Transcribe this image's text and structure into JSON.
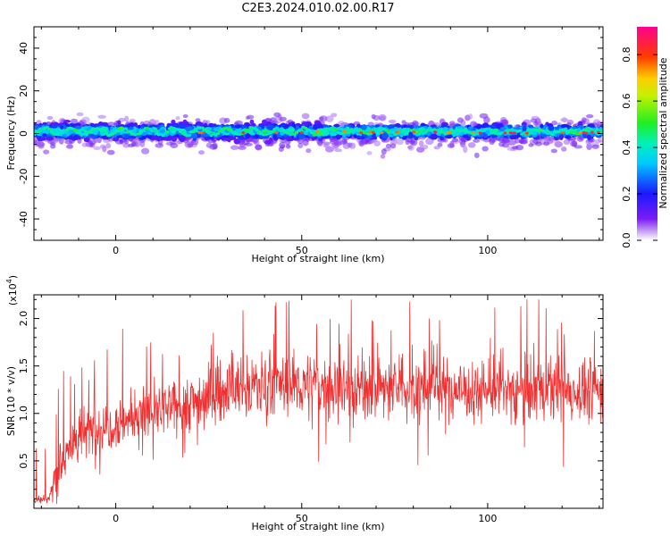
{
  "title": "C2E3.2024.010.02.00.R17",
  "chart_data": [
    {
      "type": "heatmap",
      "title": "C2E3.2024.010.02.00.R17",
      "xlabel": "Height of straight line (km)",
      "ylabel": "Frequency (Hz)",
      "xlim": [
        -22,
        131
      ],
      "ylim": [
        -50,
        50
      ],
      "x_ticks": [
        0,
        50,
        100
      ],
      "y_ticks": [
        -40,
        -20,
        0,
        20,
        40
      ],
      "description_band": {
        "y_center": 0,
        "y_halfwidth": 6
      },
      "colorbar": {
        "label": "Normalized spectral amplitude",
        "range": [
          0,
          0.92
        ],
        "ticks": [
          0.0,
          0.2,
          0.4,
          0.6,
          0.8
        ],
        "colormap": "rainbow"
      }
    },
    {
      "type": "line",
      "xlabel": "Height of straight line (km)",
      "ylabel": "SNR (10 * v/v)",
      "yscale_label": "(x10",
      "yscale_exp": "4",
      "xlim": [
        -22,
        131
      ],
      "ylim": [
        0,
        2.25
      ],
      "x_ticks": [
        0,
        50,
        100
      ],
      "y_ticks": [
        0.5,
        1.0,
        1.5,
        2.0
      ],
      "y_tick_labels": [
        "0.5",
        "1.0",
        "1.5",
        "2.0"
      ],
      "color": "#f03030",
      "trend": {
        "x": [
          -22,
          -18,
          -15,
          -10,
          -5,
          0,
          5,
          10,
          15,
          20,
          25,
          30,
          35,
          40,
          50,
          60,
          70,
          80,
          90,
          100,
          110,
          120,
          131
        ],
        "y": [
          0.08,
          0.1,
          0.5,
          0.75,
          0.85,
          0.9,
          0.95,
          1.0,
          1.05,
          1.1,
          1.18,
          1.25,
          1.28,
          1.3,
          1.3,
          1.28,
          1.27,
          1.27,
          1.25,
          1.25,
          1.25,
          1.24,
          1.23
        ]
      }
    }
  ]
}
